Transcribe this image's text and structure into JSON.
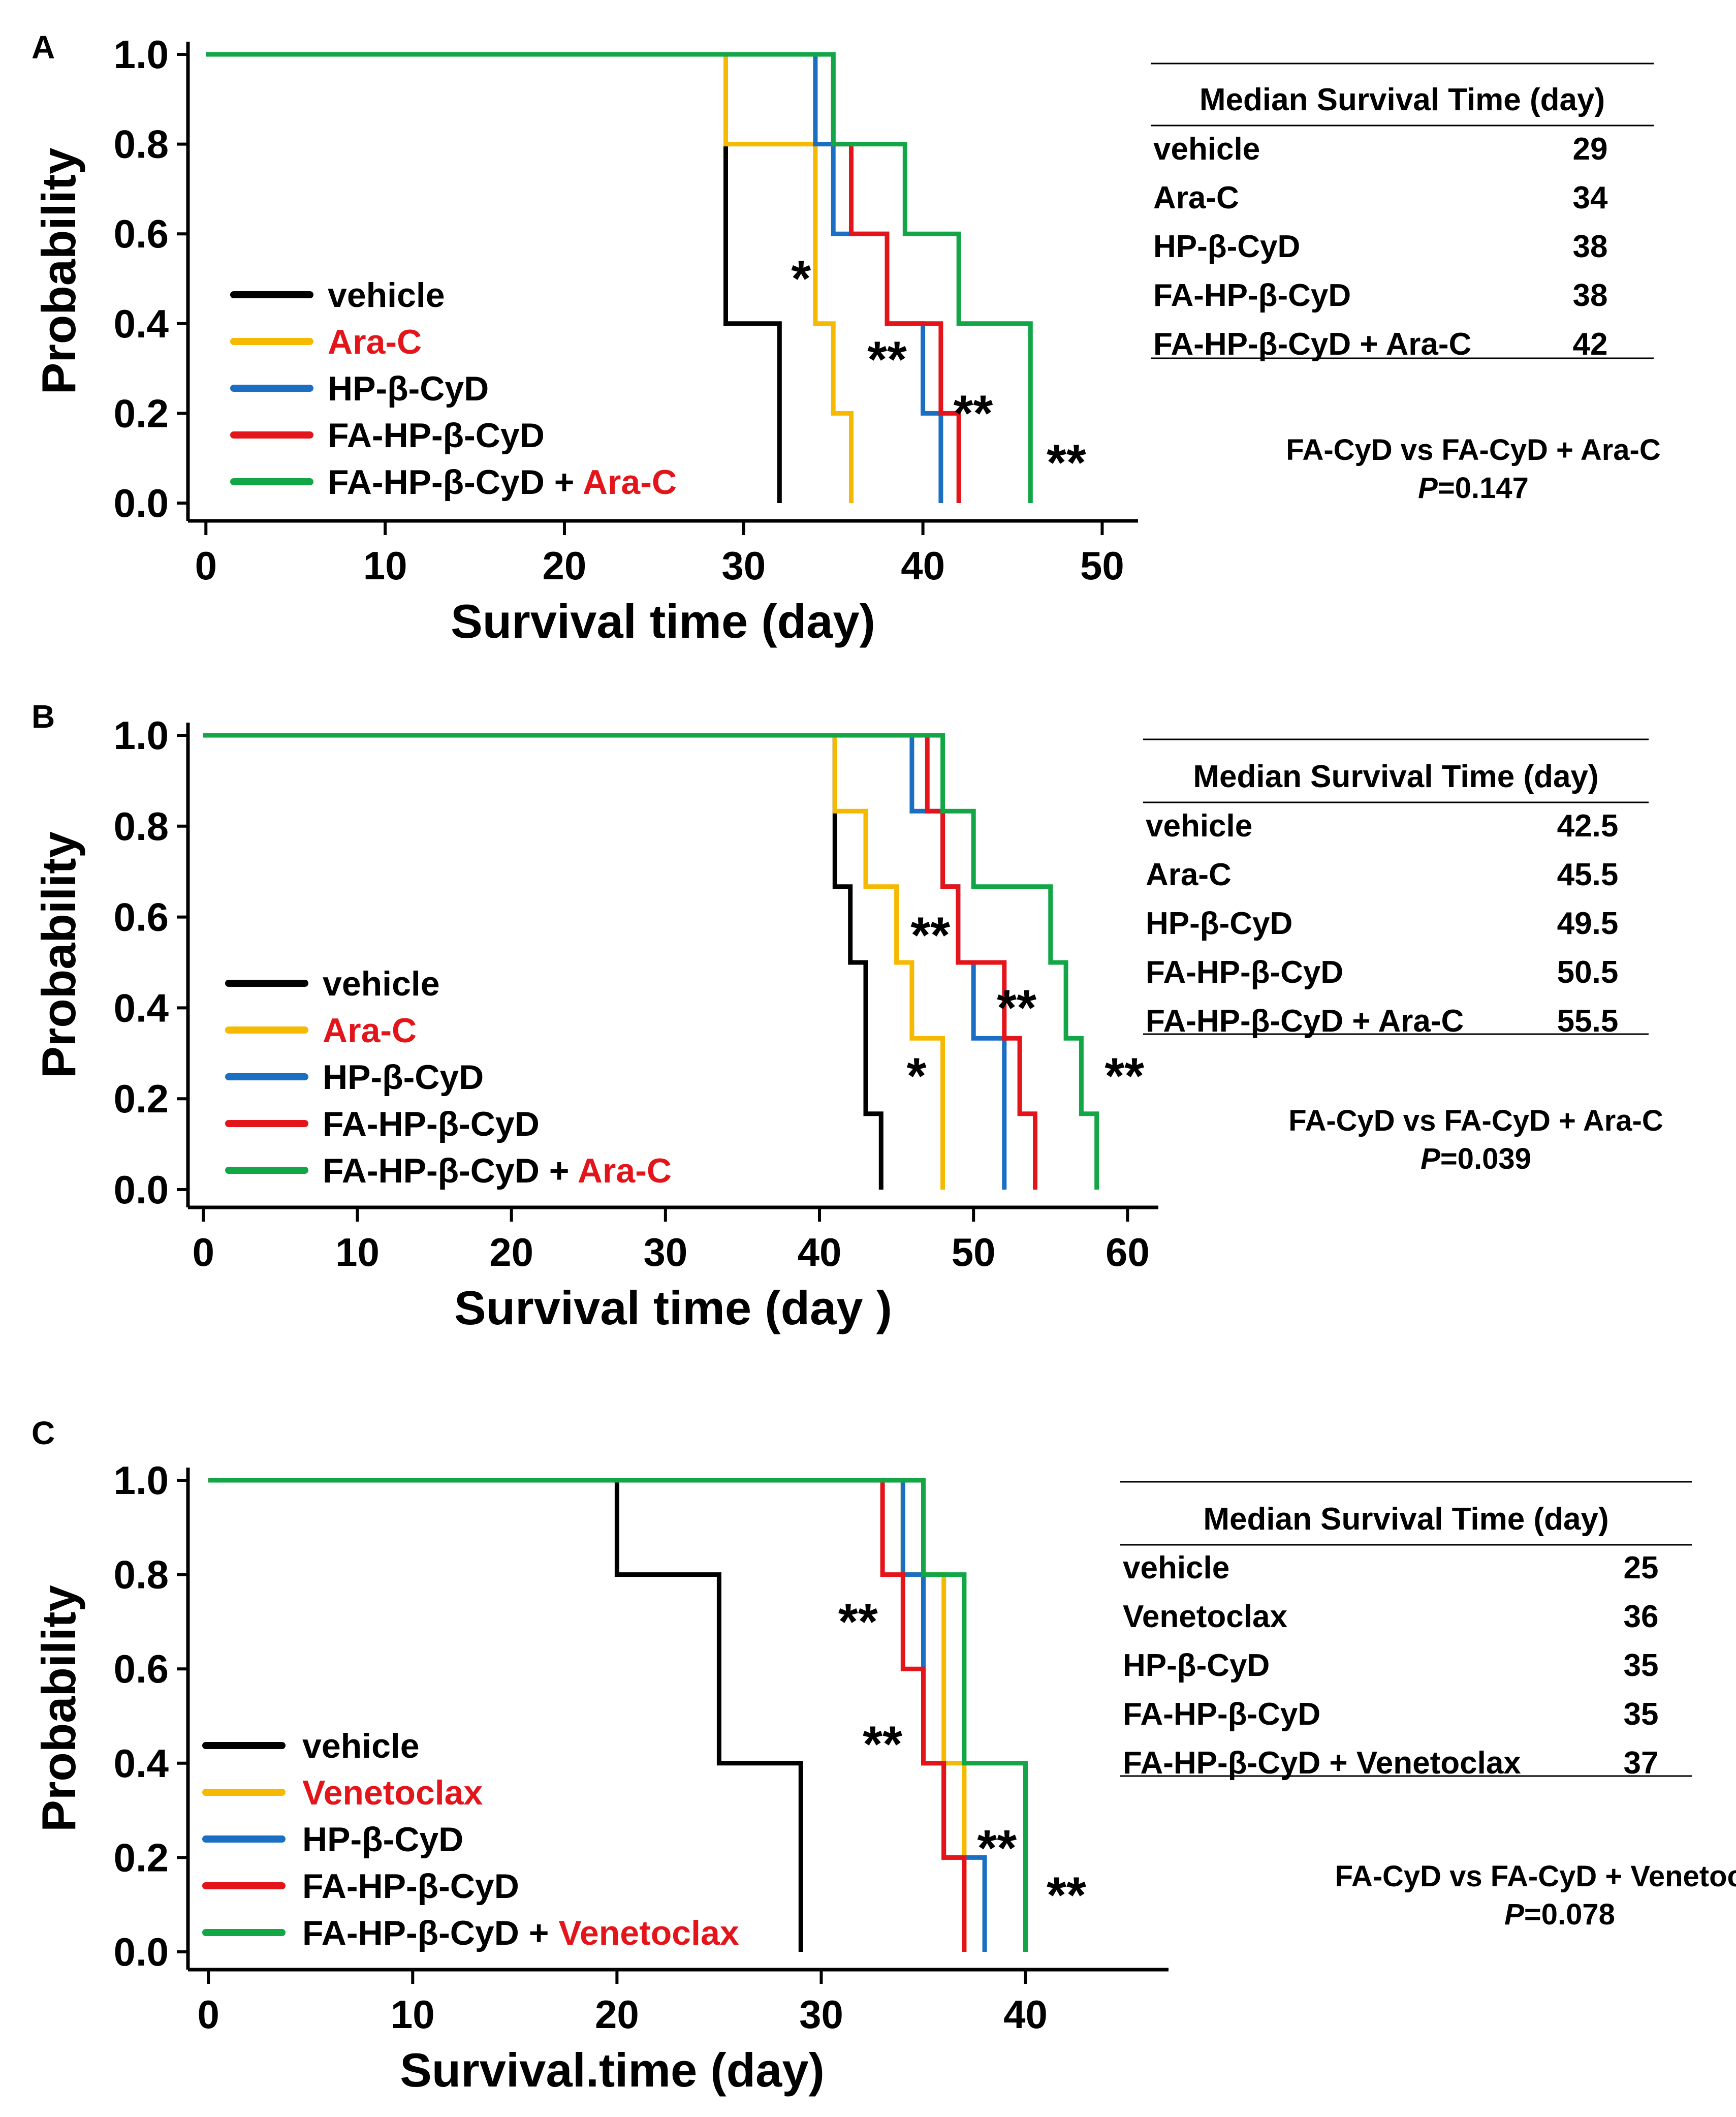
{
  "colors": {
    "vehicle": "#000000",
    "ara": "#F5B900",
    "hp": "#1A6FC3",
    "fa": "#E3151B",
    "combo": "#12A646",
    "highlight": "#E3151B",
    "text": "#000000"
  },
  "chart_data": [
    {
      "type": "line",
      "panel": "A",
      "title": "",
      "xlabel": "Survival time (day)",
      "ylabel": "Probability",
      "xlim": [
        -1,
        52
      ],
      "ylim": [
        0,
        1
      ],
      "xticks": [
        0,
        10,
        20,
        30,
        40,
        50
      ],
      "yticks": [
        "0.0",
        "0.2",
        "0.4",
        "0.6",
        "0.8",
        "1.0"
      ],
      "series": [
        {
          "name": "vehicle",
          "color": "vehicle",
          "x": [
            0,
            29,
            29,
            32,
            32
          ],
          "y": [
            1,
            1,
            0.4,
            0.4,
            0
          ]
        },
        {
          "name": "Ara-C",
          "color": "ara",
          "x": [
            0,
            29,
            29,
            34,
            34,
            35,
            35,
            36,
            36
          ],
          "y": [
            1,
            1,
            0.8,
            0.8,
            0.4,
            0.4,
            0.2,
            0.2,
            0
          ]
        },
        {
          "name": "HP-β-CyD",
          "color": "hp",
          "x": [
            0,
            34,
            34,
            35,
            35,
            38,
            38,
            40,
            40,
            41,
            41
          ],
          "y": [
            1,
            1,
            0.8,
            0.8,
            0.6,
            0.6,
            0.4,
            0.4,
            0.2,
            0.2,
            0
          ]
        },
        {
          "name": "FA-HP-β-CyD",
          "color": "fa",
          "x": [
            0,
            35,
            35,
            36,
            36,
            38,
            38,
            41,
            41,
            42,
            42
          ],
          "y": [
            1,
            1,
            0.8,
            0.8,
            0.6,
            0.6,
            0.4,
            0.4,
            0.2,
            0.2,
            0
          ]
        },
        {
          "name": "FA-HP-β-CyD + Ara-C",
          "color": "combo",
          "x": [
            0,
            35,
            35,
            39,
            39,
            42,
            42,
            46,
            46
          ],
          "y": [
            1,
            1,
            0.8,
            0.8,
            0.6,
            0.6,
            0.4,
            0.4,
            0
          ]
        }
      ],
      "annotations": [
        {
          "text": "*",
          "x": 33.2,
          "y": 0.5
        },
        {
          "text": "**",
          "x": 38.0,
          "y": 0.32
        },
        {
          "text": "**",
          "x": 42.8,
          "y": 0.2
        },
        {
          "text": "**",
          "x": 48.0,
          "y": 0.09
        }
      ],
      "legend": {
        "items": [
          {
            "label": "vehicle",
            "color": "vehicle"
          },
          {
            "label": "Ara-C",
            "color": "ara",
            "label_color": "highlight"
          },
          {
            "label": "HP-β-CyD",
            "color": "hp"
          },
          {
            "label": "FA-HP-β-CyD",
            "color": "fa"
          },
          {
            "label": "FA-HP-β-CyD + ",
            "color": "combo",
            "suffix": "Ara-C"
          }
        ]
      },
      "table": {
        "header": "Median Survival Time (day)",
        "rows": [
          {
            "group": "vehicle",
            "value": "29"
          },
          {
            "group": "Ara-C",
            "value": "34"
          },
          {
            "group": "HP-β-CyD",
            "value": "38"
          },
          {
            "group": "FA-HP-β-CyD",
            "value": "38"
          },
          {
            "group": "FA-HP-β-CyD + Ara-C",
            "value": "42"
          }
        ]
      },
      "comparison": {
        "label": "FA-CyD vs FA-CyD + Ara-C",
        "p_prefix": "P",
        "p_value": "=0.147"
      }
    },
    {
      "type": "line",
      "panel": "B",
      "title": "",
      "xlabel": "Survival time (day )",
      "ylabel": "Probability",
      "xlim": [
        -1,
        62
      ],
      "ylim": [
        0,
        1
      ],
      "xticks": [
        0,
        10,
        20,
        30,
        40,
        50,
        60
      ],
      "yticks": [
        "0.0",
        "0.2",
        "0.4",
        "0.6",
        "0.8",
        "1.0"
      ],
      "series": [
        {
          "name": "vehicle",
          "color": "vehicle",
          "x": [
            0,
            41,
            41,
            42,
            42,
            43,
            43,
            44,
            44
          ],
          "y": [
            1,
            1,
            0.667,
            0.667,
            0.5,
            0.5,
            0.167,
            0.167,
            0
          ]
        },
        {
          "name": "Ara-C",
          "color": "ara",
          "x": [
            0,
            41,
            41,
            43,
            43,
            45,
            45,
            46,
            46,
            48,
            48
          ],
          "y": [
            1,
            1,
            0.833,
            0.833,
            0.667,
            0.667,
            0.5,
            0.5,
            0.333,
            0.333,
            0
          ]
        },
        {
          "name": "HP-β-CyD",
          "color": "hp",
          "x": [
            0,
            46,
            46,
            48,
            48,
            49,
            49,
            50,
            50,
            52,
            52
          ],
          "y": [
            1,
            1,
            0.833,
            0.833,
            0.667,
            0.667,
            0.5,
            0.5,
            0.333,
            0.333,
            0
          ]
        },
        {
          "name": "FA-HP-β-CyD",
          "color": "fa",
          "x": [
            0,
            47,
            47,
            48,
            48,
            49,
            49,
            52,
            52,
            53,
            53,
            54,
            54
          ],
          "y": [
            1,
            1,
            0.833,
            0.833,
            0.667,
            0.667,
            0.5,
            0.5,
            0.333,
            0.333,
            0.167,
            0.167,
            0
          ]
        },
        {
          "name": "FA-HP-β-CyD + Ara-C",
          "color": "combo",
          "x": [
            0,
            48,
            48,
            50,
            50,
            55,
            55,
            56,
            56,
            57,
            57,
            58,
            58
          ],
          "y": [
            1,
            1,
            0.833,
            0.833,
            0.667,
            0.667,
            0.5,
            0.5,
            0.333,
            0.333,
            0.167,
            0.167,
            0
          ]
        }
      ],
      "annotations": [
        {
          "text": "**",
          "x": 47.2,
          "y": 0.56
        },
        {
          "text": "*",
          "x": 46.3,
          "y": 0.25
        },
        {
          "text": "**",
          "x": 52.8,
          "y": 0.4
        },
        {
          "text": "**",
          "x": 59.8,
          "y": 0.25
        }
      ],
      "legend": {
        "items": [
          {
            "label": "vehicle",
            "color": "vehicle"
          },
          {
            "label": "Ara-C",
            "color": "ara",
            "label_color": "highlight"
          },
          {
            "label": "HP-β-CyD",
            "color": "hp"
          },
          {
            "label": "FA-HP-β-CyD",
            "color": "fa"
          },
          {
            "label": "FA-HP-β-CyD + ",
            "color": "combo",
            "suffix": "Ara-C"
          }
        ]
      },
      "table": {
        "header": "Median Survival Time (day)",
        "rows": [
          {
            "group": "vehicle",
            "value": "42.5"
          },
          {
            "group": "Ara-C",
            "value": "45.5"
          },
          {
            "group": "HP-β-CyD",
            "value": "49.5"
          },
          {
            "group": "FA-HP-β-CyD",
            "value": "50.5"
          },
          {
            "group": "FA-HP-β-CyD + Ara-C",
            "value": "55.5"
          }
        ]
      },
      "comparison": {
        "label": "FA-CyD vs FA-CyD + Ara-C",
        "p_prefix": "P",
        "p_value": "=0.039"
      }
    },
    {
      "type": "line",
      "panel": "C",
      "title": "",
      "xlabel": "Survival.time (day)",
      "ylabel": "Probability",
      "xlim": [
        -1,
        47
      ],
      "ylim": [
        0,
        1
      ],
      "xticks": [
        0,
        10,
        20,
        30,
        40
      ],
      "yticks": [
        "0.0",
        "0.2",
        "0.4",
        "0.6",
        "0.8",
        "1.0"
      ],
      "series": [
        {
          "name": "vehicle",
          "color": "vehicle",
          "x": [
            0,
            20,
            20,
            25,
            25,
            29,
            29
          ],
          "y": [
            1,
            1,
            0.8,
            0.8,
            0.4,
            0.4,
            0
          ]
        },
        {
          "name": "Venetoclax",
          "color": "ara",
          "x": [
            0,
            34,
            34,
            36,
            36,
            37,
            37
          ],
          "y": [
            1,
            1,
            0.8,
            0.8,
            0.4,
            0.4,
            0
          ]
        },
        {
          "name": "HP-β-CyD",
          "color": "hp",
          "x": [
            0,
            34,
            34,
            35,
            35,
            36,
            36,
            38,
            38
          ],
          "y": [
            1,
            1,
            0.8,
            0.8,
            0.4,
            0.4,
            0.2,
            0.2,
            0
          ]
        },
        {
          "name": "FA-HP-β-CyD",
          "color": "fa",
          "x": [
            0,
            33,
            33,
            34,
            34,
            35,
            35,
            36,
            36,
            37,
            37
          ],
          "y": [
            1,
            1,
            0.8,
            0.8,
            0.6,
            0.6,
            0.4,
            0.4,
            0.2,
            0.2,
            0
          ]
        },
        {
          "name": "FA-HP-β-CyD + Venetoclax",
          "color": "combo",
          "x": [
            0,
            35,
            35,
            37,
            37,
            40,
            40
          ],
          "y": [
            1,
            1,
            0.8,
            0.8,
            0.4,
            0.4,
            0
          ]
        }
      ],
      "annotations": [
        {
          "text": "**",
          "x": 31.8,
          "y": 0.7
        },
        {
          "text": "**",
          "x": 33.0,
          "y": 0.44
        },
        {
          "text": "**",
          "x": 38.6,
          "y": 0.22
        },
        {
          "text": "**",
          "x": 42.0,
          "y": 0.12
        }
      ],
      "legend": {
        "items": [
          {
            "label": "vehicle",
            "color": "vehicle"
          },
          {
            "label": "Venetoclax",
            "color": "ara",
            "label_color": "highlight"
          },
          {
            "label": "HP-β-CyD",
            "color": "hp"
          },
          {
            "label": "FA-HP-β-CyD",
            "color": "fa"
          },
          {
            "label": "FA-HP-β-CyD + ",
            "color": "combo",
            "suffix": "Venetoclax"
          }
        ]
      },
      "table": {
        "header": "Median Survival Time (day)",
        "rows": [
          {
            "group": "vehicle",
            "value": "25"
          },
          {
            "group": "Venetoclax",
            "value": "36"
          },
          {
            "group": "HP-β-CyD",
            "value": "35"
          },
          {
            "group": "FA-HP-β-CyD",
            "value": "35"
          },
          {
            "group": "FA-HP-β-CyD + Venetoclax",
            "value": "37"
          }
        ]
      },
      "comparison": {
        "label": "FA-CyD vs FA-CyD + Venetoclax",
        "p_prefix": "P",
        "p_value": "=0.078"
      }
    }
  ]
}
